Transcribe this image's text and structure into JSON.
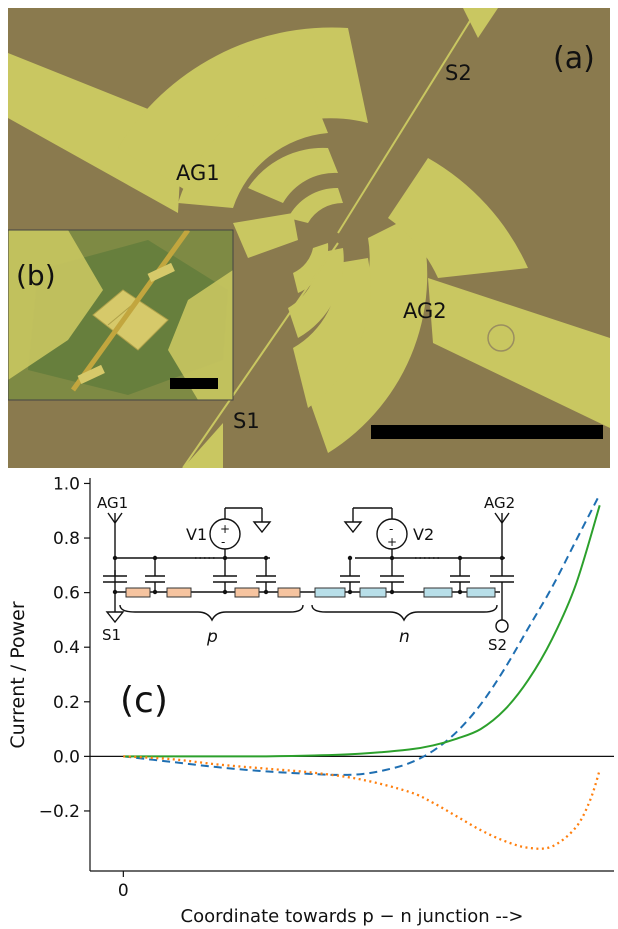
{
  "figure": {
    "panel_a": {
      "label": "(a)",
      "labels": {
        "ag1": "AG1",
        "ag2": "AG2",
        "s1": "S1",
        "s2": "S2"
      },
      "colors": {
        "substrate": "#8a7a4e",
        "gold": "#c9c761",
        "gold_light": "#d8d66f"
      }
    },
    "panel_b": {
      "label": "(b)",
      "colors": {
        "background": "#7e8a44",
        "flake": "#5e7a3a",
        "pad": "#d6c96a"
      }
    },
    "panel_c": {
      "label": "(c)"
    },
    "circuit": {
      "labels": {
        "ag1": "AG1",
        "ag2": "AG2",
        "s1": "S1",
        "s2": "S2",
        "v1": "V1",
        "v2": "V2",
        "p": "p",
        "n": "n",
        "v1_plus": "+",
        "v1_minus": "-",
        "v2_minus": "-",
        "v2_plus": "+"
      },
      "colors": {
        "p_resistor": "#f6c4a0",
        "n_resistor": "#b8dfe9"
      }
    }
  },
  "chart_data": {
    "type": "line",
    "title": "",
    "xlabel": "Coordinate towards p − n junction -->",
    "ylabel": "Current / Power",
    "xlim": [
      -0.07,
      1.03
    ],
    "ylim": [
      -0.42,
      1.02
    ],
    "x_ticks": [
      0
    ],
    "x_tick_labels": [
      "0"
    ],
    "y_ticks": [
      -0.2,
      0.0,
      0.2,
      0.4,
      0.6,
      0.8,
      1.0
    ],
    "y_tick_labels": [
      "−0.2",
      "0.0",
      "0.2",
      "0.4",
      "0.6",
      "0.8",
      "1.0"
    ],
    "zero_line": true,
    "grid": false,
    "series": [
      {
        "color": "#1f6fb2",
        "style": "dashed",
        "x": [
          0,
          0.1,
          0.2,
          0.3,
          0.4,
          0.45,
          0.5,
          0.55,
          0.6,
          0.65,
          0.7,
          0.75,
          0.8,
          0.85,
          0.9,
          0.95,
          1.0
        ],
        "y": [
          0,
          -0.02,
          -0.04,
          -0.055,
          -0.065,
          -0.068,
          -0.065,
          -0.05,
          -0.025,
          0.02,
          0.09,
          0.19,
          0.32,
          0.47,
          0.62,
          0.79,
          0.96
        ]
      },
      {
        "color": "#2ca02c",
        "style": "solid",
        "x": [
          0,
          0.1,
          0.2,
          0.3,
          0.4,
          0.5,
          0.6,
          0.65,
          0.7,
          0.75,
          0.8,
          0.85,
          0.9,
          0.95,
          1.0
        ],
        "y": [
          0,
          0.0,
          0.0,
          0.0,
          0.003,
          0.01,
          0.025,
          0.04,
          0.065,
          0.1,
          0.17,
          0.28,
          0.43,
          0.63,
          0.92
        ]
      },
      {
        "color": "#ff7f0e",
        "style": "dotted",
        "x": [
          0,
          0.1,
          0.2,
          0.3,
          0.4,
          0.5,
          0.6,
          0.65,
          0.7,
          0.75,
          0.8,
          0.85,
          0.9,
          0.95,
          0.98,
          1.0
        ],
        "y": [
          0,
          -0.01,
          -0.03,
          -0.045,
          -0.06,
          -0.085,
          -0.13,
          -0.17,
          -0.22,
          -0.27,
          -0.31,
          -0.335,
          -0.33,
          -0.26,
          -0.16,
          -0.05
        ]
      }
    ]
  }
}
